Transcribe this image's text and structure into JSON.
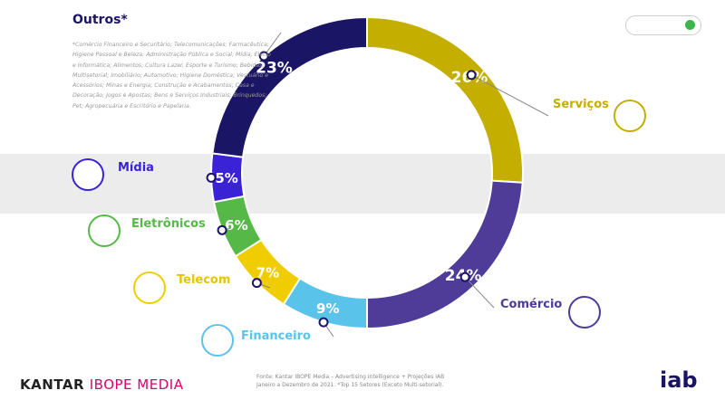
{
  "chart_data": {
    "type": "pie",
    "donut": true,
    "start": "top",
    "direction": "clockwise",
    "slices": [
      {
        "name": "Serviços",
        "value": 26,
        "label": "26%",
        "color": "#c4ae00",
        "icon": "headset-icon"
      },
      {
        "name": "Comércio",
        "value": 24,
        "label": "24%",
        "color": "#4e3c98",
        "icon": "shopping-cart-icon"
      },
      {
        "name": "Financeiro",
        "value": 9,
        "label": "9%",
        "color": "#5ac3ea",
        "icon": "credit-card-icon"
      },
      {
        "name": "Telecom",
        "value": 7,
        "label": "7%",
        "color": "#f0cd00",
        "icon": "smartphone-icon"
      },
      {
        "name": "Eletrônicos",
        "value": 6,
        "label": "6%",
        "color": "#56b947",
        "icon": "calculator-icon"
      },
      {
        "name": "Mídia",
        "value": 5,
        "label": "5%",
        "color": "#3a22d6",
        "icon": "play-icon"
      },
      {
        "name": "Outros*",
        "value": 23,
        "label": "23%",
        "color": "#1b1566",
        "icon": ""
      }
    ],
    "outros_note": "*Comércio Financeiro e Securitário; Telecomunicações; Farmacêutica; Higiene Pessoal e Beleza; Administração Pública e Social; Mídia; Eletro e Informática; Alimentos; Cultura Lazer, Esporte e Turismo; Bebidas; Multisetorial; Imobiliário; Automotivo; Higiene Doméstica; Vestuário e Acessórios; Minas e Energia; Construção e Acabamentos; Casa e Decoração; Jogos e Apostas; Bens e Serviços Industriais; Brinquedos; Pet; Agropecuária e Escritório e Papelaria."
  },
  "footer": {
    "brand_a": "KANTAR",
    "brand_b": "IBOPE MEDIA",
    "source_1": "Fonte: Kantar IBOPE Media – Advertising Intelligence + Projeções IAB",
    "source_2": "Janeiro a Dezembro de 2021. *Top 15 Setores (Exceto Multi-setorial).",
    "logo": "iab"
  }
}
